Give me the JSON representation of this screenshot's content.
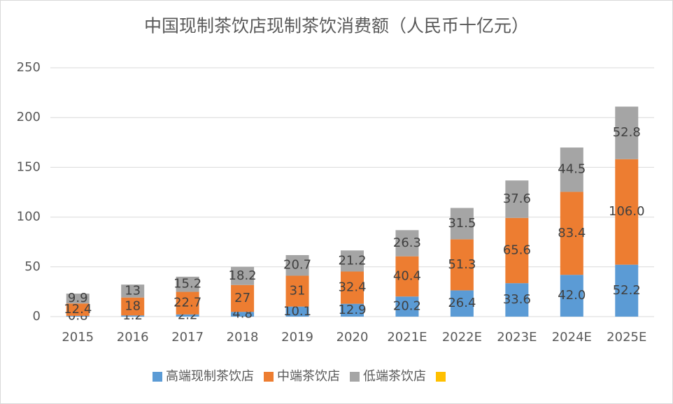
{
  "chart_data": {
    "type": "stacked_bar",
    "title": "中国现制茶饮店现制茶饮消费额（人民币十亿元）",
    "categories": [
      "2015",
      "2016",
      "2017",
      "2018",
      "2019",
      "2020",
      "2021E",
      "2022E",
      "2023E",
      "2024E",
      "2025E"
    ],
    "series": [
      {
        "name": "高端现制茶饮店",
        "color": "#5b9bd5",
        "values": [
          0.8,
          1.2,
          2.2,
          4.8,
          10.1,
          12.9,
          20.2,
          26.4,
          33.6,
          42.0,
          52.2
        ],
        "value_labels": [
          "0.8",
          "1.2",
          "2.2",
          "4.8",
          "10.1",
          "12.9",
          "20.2",
          "26.4",
          "33.6",
          "42.0",
          "52.2"
        ]
      },
      {
        "name": "中端茶饮店",
        "color": "#ed7d31",
        "values": [
          12.4,
          18,
          22.7,
          27,
          31,
          32.4,
          40.4,
          51.3,
          65.6,
          83.4,
          106.0
        ],
        "value_labels": [
          "12.4",
          "18",
          "22.7",
          "27",
          "31",
          "32.4",
          "40.4",
          "51.3",
          "65.6",
          "83.4",
          "106.0"
        ]
      },
      {
        "name": "低端茶饮店",
        "color": "#a5a5a5",
        "values": [
          9.9,
          13,
          15.2,
          18.2,
          20.7,
          21.2,
          26.3,
          31.5,
          37.6,
          44.5,
          52.8
        ],
        "value_labels": [
          "9.9",
          "13",
          "15.2",
          "18.2",
          "20.7",
          "21.2",
          "26.3",
          "31.5",
          "37.6",
          "44.5",
          "52.8"
        ]
      },
      {
        "color": "#ffc000"
      }
    ],
    "ylim": [
      0,
      250
    ],
    "yticks": [
      0,
      50,
      100,
      150,
      200,
      250
    ],
    "grid": true,
    "legend": "bottom"
  }
}
